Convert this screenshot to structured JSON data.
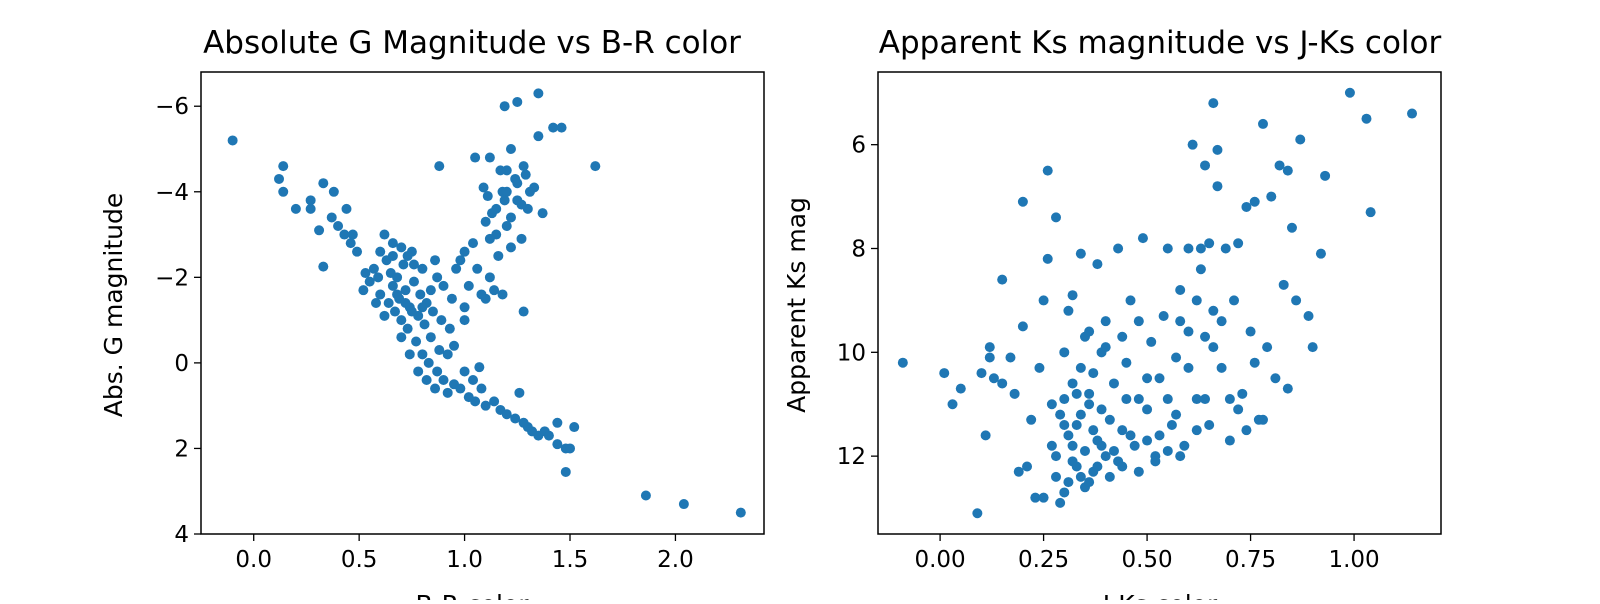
{
  "chart_data": [
    {
      "type": "scatter",
      "title": "Absolute G Magnitude vs B-R color",
      "xlabel": "B-R color",
      "ylabel": "Abs. G magnitude",
      "xlim": [
        -0.25,
        2.42
      ],
      "ylim": [
        4.0,
        -6.8
      ],
      "y_inverted": true,
      "xticks": [
        0.0,
        0.5,
        1.0,
        1.5,
        2.0
      ],
      "xtick_labels": [
        "0.0",
        "0.5",
        "1.0",
        "1.5",
        "2.0"
      ],
      "yticks": [
        -6,
        -4,
        -2,
        0,
        2,
        4
      ],
      "ytick_labels": [
        "−6",
        "−4",
        "−2",
        "0",
        "2",
        "4"
      ],
      "grid": false,
      "color": "#1f77b4",
      "points": [
        [
          -0.1,
          -5.2
        ],
        [
          0.12,
          -4.3
        ],
        [
          0.14,
          -4.6
        ],
        [
          0.14,
          -4.0
        ],
        [
          0.2,
          -3.6
        ],
        [
          0.27,
          -3.6
        ],
        [
          0.27,
          -3.8
        ],
        [
          0.31,
          -3.1
        ],
        [
          0.33,
          -4.2
        ],
        [
          0.33,
          -2.25
        ],
        [
          0.37,
          -3.4
        ],
        [
          0.38,
          -4.0
        ],
        [
          0.4,
          -3.2
        ],
        [
          0.43,
          -3.0
        ],
        [
          0.44,
          -3.6
        ],
        [
          0.46,
          -2.8
        ],
        [
          0.47,
          -3.0
        ],
        [
          0.49,
          -2.6
        ],
        [
          0.52,
          -1.7
        ],
        [
          0.53,
          -2.1
        ],
        [
          0.55,
          -1.9
        ],
        [
          0.57,
          -2.2
        ],
        [
          0.59,
          -2.0
        ],
        [
          0.6,
          -1.6
        ],
        [
          0.6,
          -2.6
        ],
        [
          0.62,
          -3.0
        ],
        [
          0.63,
          -2.4
        ],
        [
          0.64,
          -1.4
        ],
        [
          0.65,
          -2.1
        ],
        [
          0.66,
          -1.8
        ],
        [
          0.66,
          -2.8
        ],
        [
          0.67,
          -1.2
        ],
        [
          0.68,
          -2.0
        ],
        [
          0.69,
          -1.5
        ],
        [
          0.7,
          -1.0
        ],
        [
          0.71,
          -2.3
        ],
        [
          0.72,
          -1.7
        ],
        [
          0.73,
          -0.8
        ],
        [
          0.74,
          -1.3
        ],
        [
          0.75,
          -2.6
        ],
        [
          0.76,
          -1.9
        ],
        [
          0.77,
          -0.5
        ],
        [
          0.78,
          -1.1
        ],
        [
          0.79,
          -1.6
        ],
        [
          0.8,
          -2.2
        ],
        [
          0.8,
          -0.2
        ],
        [
          0.81,
          -0.9
        ],
        [
          0.82,
          -1.4
        ],
        [
          0.83,
          0.0
        ],
        [
          0.84,
          -0.6
        ],
        [
          0.85,
          -1.2
        ],
        [
          0.86,
          -2.4
        ],
        [
          0.87,
          0.2
        ],
        [
          0.88,
          -0.3
        ],
        [
          0.89,
          -1.0
        ],
        [
          0.9,
          -1.8
        ],
        [
          0.9,
          0.4
        ],
        [
          0.92,
          -0.2
        ],
        [
          0.93,
          -0.8
        ],
        [
          0.94,
          -1.5
        ],
        [
          0.95,
          0.5
        ],
        [
          0.96,
          -2.2
        ],
        [
          0.98,
          0.6
        ],
        [
          1.0,
          -1.0
        ],
        [
          1.02,
          0.8
        ],
        [
          1.05,
          0.9
        ],
        [
          1.07,
          0.1
        ],
        [
          1.1,
          1.0
        ],
        [
          1.1,
          -1.5
        ],
        [
          1.12,
          -2.0
        ],
        [
          1.13,
          -3.5
        ],
        [
          1.15,
          -3.0
        ],
        [
          1.16,
          -2.5
        ],
        [
          1.17,
          1.1
        ],
        [
          1.18,
          -1.6
        ],
        [
          1.18,
          -4.0
        ],
        [
          1.2,
          -3.2
        ],
        [
          1.2,
          -4.5
        ],
        [
          1.22,
          -2.7
        ],
        [
          1.22,
          -5.0
        ],
        [
          1.24,
          1.3
        ],
        [
          1.25,
          -3.8
        ],
        [
          1.25,
          -4.2
        ],
        [
          1.27,
          -2.9
        ],
        [
          1.28,
          -4.6
        ],
        [
          1.3,
          1.5
        ],
        [
          1.3,
          -3.6
        ],
        [
          1.33,
          -4.1
        ],
        [
          1.35,
          -5.3
        ],
        [
          1.35,
          1.7
        ],
        [
          1.37,
          -3.5
        ],
        [
          1.38,
          1.6
        ],
        [
          1.42,
          -5.5
        ],
        [
          1.44,
          1.4
        ],
        [
          1.46,
          -5.5
        ],
        [
          1.48,
          2.0
        ],
        [
          1.48,
          2.55
        ],
        [
          1.5,
          2.0
        ],
        [
          1.52,
          1.5
        ],
        [
          1.62,
          -4.6
        ],
        [
          1.86,
          3.1
        ],
        [
          2.04,
          3.3
        ],
        [
          2.31,
          3.5
        ],
        [
          0.88,
          -4.6
        ],
        [
          1.05,
          -4.8
        ],
        [
          1.12,
          -4.8
        ],
        [
          1.17,
          -4.5
        ],
        [
          1.19,
          -6.0
        ],
        [
          1.25,
          -6.1
        ],
        [
          1.35,
          -6.3
        ],
        [
          1.12,
          -2.9
        ],
        [
          1.14,
          -1.7
        ],
        [
          1.06,
          -2.2
        ],
        [
          0.98,
          -2.4
        ],
        [
          1.02,
          -1.8
        ],
        [
          1.08,
          -1.6
        ],
        [
          1.0,
          -1.3
        ],
        [
          1.26,
          0.7
        ],
        [
          1.24,
          -4.3
        ],
        [
          1.31,
          -4.0
        ],
        [
          1.2,
          -4.0
        ],
        [
          1.28,
          -1.2
        ],
        [
          0.95,
          -0.4
        ],
        [
          1.0,
          0.2
        ],
        [
          1.04,
          0.4
        ],
        [
          1.08,
          0.6
        ],
        [
          1.14,
          0.9
        ],
        [
          1.2,
          1.2
        ],
        [
          1.28,
          1.4
        ],
        [
          1.32,
          1.6
        ],
        [
          1.4,
          1.7
        ],
        [
          1.44,
          1.9
        ],
        [
          0.58,
          -1.4
        ],
        [
          0.62,
          -1.1
        ],
        [
          0.7,
          -0.6
        ],
        [
          0.74,
          -0.2
        ],
        [
          0.78,
          0.2
        ],
        [
          0.82,
          0.4
        ],
        [
          0.86,
          0.6
        ],
        [
          0.92,
          0.7
        ],
        [
          0.66,
          -2.5
        ],
        [
          0.7,
          -2.7
        ],
        [
          0.73,
          -2.5
        ],
        [
          0.76,
          -2.3
        ],
        [
          0.68,
          -1.6
        ],
        [
          0.72,
          -1.4
        ],
        [
          0.75,
          -1.2
        ],
        [
          0.8,
          -1.3
        ],
        [
          0.84,
          -1.7
        ],
        [
          0.87,
          -2.0
        ],
        [
          1.0,
          -2.6
        ],
        [
          1.04,
          -2.8
        ],
        [
          1.1,
          -3.3
        ],
        [
          1.15,
          -3.6
        ],
        [
          1.19,
          -3.8
        ],
        [
          1.22,
          -3.4
        ],
        [
          1.27,
          -3.7
        ],
        [
          1.09,
          -4.1
        ],
        [
          1.11,
          -3.9
        ],
        [
          1.29,
          -4.4
        ]
      ]
    },
    {
      "type": "scatter",
      "title": "Apparent Ks magnitude vs J-Ks color",
      "xlabel": "J-Ks color",
      "ylabel": "Apparent Ks mag",
      "xlim": [
        -0.15,
        1.21
      ],
      "ylim": [
        13.5,
        4.6
      ],
      "y_inverted": true,
      "xticks": [
        0.0,
        0.25,
        0.5,
        0.75,
        1.0
      ],
      "xtick_labels": [
        "0.00",
        "0.25",
        "0.50",
        "0.75",
        "1.00"
      ],
      "yticks": [
        6,
        8,
        10,
        12
      ],
      "ytick_labels": [
        "6",
        "8",
        "10",
        "12"
      ],
      "grid": false,
      "color": "#1f77b4",
      "points": [
        [
          -0.09,
          10.2
        ],
        [
          0.01,
          10.4
        ],
        [
          0.03,
          11.0
        ],
        [
          0.05,
          10.7
        ],
        [
          0.09,
          13.1
        ],
        [
          0.1,
          10.4
        ],
        [
          0.11,
          11.6
        ],
        [
          0.12,
          10.1
        ],
        [
          0.12,
          9.9
        ],
        [
          0.13,
          10.5
        ],
        [
          0.15,
          10.6
        ],
        [
          0.15,
          8.6
        ],
        [
          0.17,
          10.1
        ],
        [
          0.18,
          10.8
        ],
        [
          0.19,
          12.3
        ],
        [
          0.2,
          9.5
        ],
        [
          0.2,
          7.1
        ],
        [
          0.21,
          12.2
        ],
        [
          0.22,
          11.3
        ],
        [
          0.23,
          12.8
        ],
        [
          0.24,
          10.3
        ],
        [
          0.25,
          12.8
        ],
        [
          0.25,
          9.0
        ],
        [
          0.26,
          8.2
        ],
        [
          0.26,
          6.5
        ],
        [
          0.27,
          11.0
        ],
        [
          0.28,
          12.0
        ],
        [
          0.28,
          7.4
        ],
        [
          0.29,
          12.9
        ],
        [
          0.3,
          11.4
        ],
        [
          0.3,
          10.0
        ],
        [
          0.31,
          12.5
        ],
        [
          0.31,
          9.2
        ],
        [
          0.32,
          11.8
        ],
        [
          0.32,
          8.9
        ],
        [
          0.33,
          12.2
        ],
        [
          0.33,
          10.8
        ],
        [
          0.34,
          11.2
        ],
        [
          0.34,
          8.1
        ],
        [
          0.35,
          12.6
        ],
        [
          0.35,
          9.7
        ],
        [
          0.36,
          11.0
        ],
        [
          0.37,
          12.3
        ],
        [
          0.37,
          10.4
        ],
        [
          0.38,
          11.7
        ],
        [
          0.38,
          8.3
        ],
        [
          0.39,
          10.0
        ],
        [
          0.4,
          12.0
        ],
        [
          0.4,
          9.4
        ],
        [
          0.41,
          11.3
        ],
        [
          0.42,
          10.6
        ],
        [
          0.43,
          12.1
        ],
        [
          0.43,
          8.0
        ],
        [
          0.44,
          11.5
        ],
        [
          0.45,
          10.2
        ],
        [
          0.46,
          9.0
        ],
        [
          0.47,
          11.8
        ],
        [
          0.48,
          10.9
        ],
        [
          0.49,
          7.8
        ],
        [
          0.5,
          11.1
        ],
        [
          0.51,
          9.8
        ],
        [
          0.52,
          12.0
        ],
        [
          0.53,
          10.5
        ],
        [
          0.54,
          9.3
        ],
        [
          0.55,
          8.0
        ],
        [
          0.56,
          11.4
        ],
        [
          0.57,
          10.1
        ],
        [
          0.58,
          8.8
        ],
        [
          0.59,
          11.8
        ],
        [
          0.6,
          9.6
        ],
        [
          0.61,
          6.0
        ],
        [
          0.62,
          10.9
        ],
        [
          0.63,
          8.4
        ],
        [
          0.64,
          6.4
        ],
        [
          0.65,
          11.4
        ],
        [
          0.66,
          5.2
        ],
        [
          0.66,
          9.2
        ],
        [
          0.67,
          6.8
        ],
        [
          0.67,
          6.1
        ],
        [
          0.68,
          10.3
        ],
        [
          0.69,
          8.0
        ],
        [
          0.7,
          11.7
        ],
        [
          0.71,
          9.0
        ],
        [
          0.72,
          7.9
        ],
        [
          0.73,
          10.8
        ],
        [
          0.74,
          7.2
        ],
        [
          0.75,
          9.6
        ],
        [
          0.76,
          7.1
        ],
        [
          0.77,
          11.3
        ],
        [
          0.78,
          5.6
        ],
        [
          0.79,
          9.9
        ],
        [
          0.8,
          7.0
        ],
        [
          0.81,
          10.5
        ],
        [
          0.82,
          6.4
        ],
        [
          0.83,
          8.7
        ],
        [
          0.84,
          6.5
        ],
        [
          0.84,
          10.7
        ],
        [
          0.85,
          7.6
        ],
        [
          0.86,
          9.0
        ],
        [
          0.87,
          5.9
        ],
        [
          0.89,
          9.3
        ],
        [
          0.9,
          9.9
        ],
        [
          0.92,
          8.1
        ],
        [
          0.93,
          6.6
        ],
        [
          0.99,
          5.0
        ],
        [
          1.03,
          5.5
        ],
        [
          1.04,
          7.3
        ],
        [
          1.14,
          5.4
        ],
        [
          0.27,
          11.8
        ],
        [
          0.28,
          12.4
        ],
        [
          0.29,
          11.2
        ],
        [
          0.3,
          12.7
        ],
        [
          0.31,
          11.6
        ],
        [
          0.32,
          12.1
        ],
        [
          0.33,
          11.4
        ],
        [
          0.34,
          12.4
        ],
        [
          0.35,
          11.9
        ],
        [
          0.36,
          12.5
        ],
        [
          0.37,
          11.5
        ],
        [
          0.38,
          12.2
        ],
        [
          0.39,
          11.8
        ],
        [
          0.41,
          12.4
        ],
        [
          0.42,
          11.9
        ],
        [
          0.44,
          12.2
        ],
        [
          0.46,
          11.6
        ],
        [
          0.48,
          12.3
        ],
        [
          0.5,
          11.7
        ],
        [
          0.52,
          12.1
        ],
        [
          0.55,
          11.9
        ],
        [
          0.58,
          12.0
        ],
        [
          0.3,
          10.9
        ],
        [
          0.32,
          10.6
        ],
        [
          0.34,
          10.3
        ],
        [
          0.36,
          10.8
        ],
        [
          0.39,
          11.1
        ],
        [
          0.45,
          10.9
        ],
        [
          0.5,
          10.5
        ],
        [
          0.55,
          10.9
        ],
        [
          0.6,
          10.3
        ],
        [
          0.64,
          10.9
        ],
        [
          0.66,
          9.9
        ],
        [
          0.68,
          9.4
        ],
        [
          0.7,
          10.9
        ],
        [
          0.72,
          11.1
        ],
        [
          0.74,
          11.5
        ],
        [
          0.76,
          10.2
        ],
        [
          0.78,
          11.3
        ],
        [
          0.62,
          11.5
        ],
        [
          0.57,
          11.2
        ],
        [
          0.53,
          11.6
        ],
        [
          0.6,
          8.0
        ],
        [
          0.63,
          8.0
        ],
        [
          0.65,
          7.9
        ],
        [
          0.58,
          9.4
        ],
        [
          0.62,
          9.0
        ],
        [
          0.64,
          9.7
        ],
        [
          0.48,
          9.4
        ],
        [
          0.44,
          9.7
        ],
        [
          0.4,
          9.9
        ],
        [
          0.36,
          9.6
        ]
      ]
    }
  ]
}
